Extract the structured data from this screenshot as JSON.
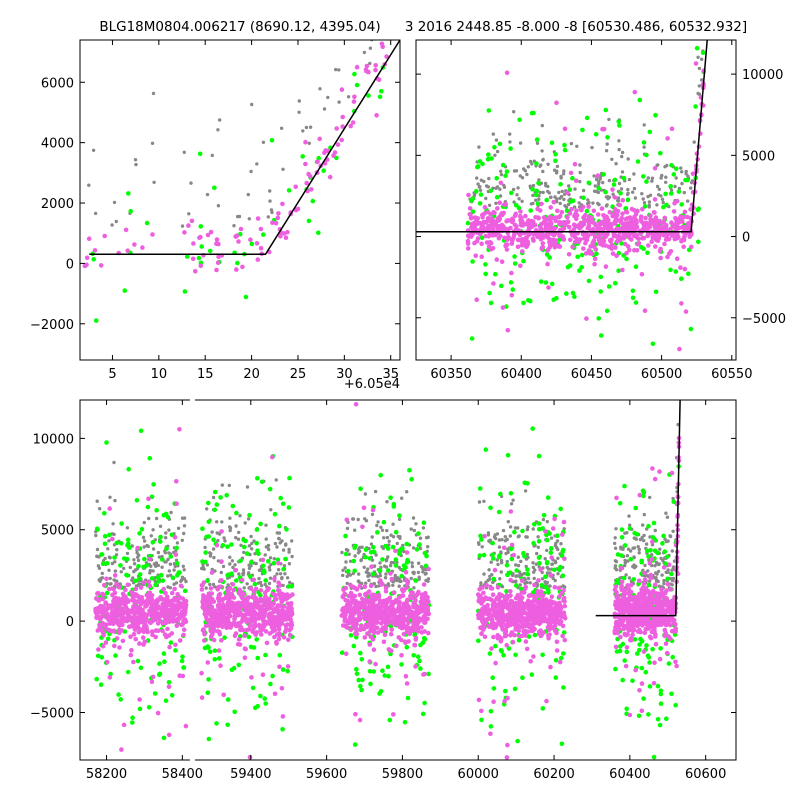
{
  "chart_data": [
    {
      "type": "scatter",
      "title": "BLG18M0804.006217 (8690.12, 4395.04)",
      "xlim": [
        1.5,
        36
      ],
      "ylim": [
        -3200,
        7400
      ],
      "x_offset_label": "+6.05e4",
      "xticks": [
        5,
        10,
        15,
        20,
        25,
        30,
        35
      ],
      "xtick_labels": [
        "5",
        "10",
        "15",
        "20",
        "25",
        "30",
        "35"
      ],
      "yticks": [
        -2000,
        0,
        2000,
        4000,
        6000
      ],
      "ytick_labels": [
        "−2000",
        "0",
        "2000",
        "4000",
        "6000"
      ],
      "colors": {
        "gray": "#888888",
        "green": "#00ff00",
        "magenta": "#ee5fe0",
        "model": "#000000"
      },
      "model": {
        "x": [
          2.5,
          21.5,
          36
        ],
        "y": [
          300,
          300,
          7400
        ]
      }
    },
    {
      "type": "scatter",
      "title": "3 2016 2448.85 -8.000 -8 [60530.486, 60532.932]",
      "xlim": [
        60325,
        60553
      ],
      "ylim": [
        -7600,
        12100
      ],
      "xticks": [
        60350,
        60400,
        60450,
        60500,
        60550
      ],
      "xtick_labels": [
        "60350",
        "60400",
        "60450",
        "60500",
        "60550"
      ],
      "yticks": [
        -5000,
        0,
        5000,
        10000
      ],
      "ytick_labels": [
        "−5000",
        "0",
        "5000",
        "10000"
      ],
      "colors": {
        "gray": "#888888",
        "green": "#00ff00",
        "magenta": "#ee5fe0",
        "model": "#000000"
      },
      "model": {
        "x": [
          60325,
          60521,
          60532.5
        ],
        "y": [
          300,
          300,
          12100
        ]
      }
    },
    {
      "type": "scatter",
      "xlim": [
        58130,
        60680
      ],
      "ylim": [
        -7600,
        12100
      ],
      "xticks": [
        58200,
        58400,
        59400,
        59600,
        59800,
        60000,
        60200,
        60400,
        60600
      ],
      "xtick_labels": [
        "58200",
        "58400",
        "59400",
        "59600",
        "59800",
        "60000",
        "60200",
        "60400",
        "60600"
      ],
      "yticks": [
        -5000,
        0,
        5000,
        10000
      ],
      "ytick_labels": [
        "−5000",
        "0",
        "5000",
        "10000"
      ],
      "axis_break": [
        58420,
        59250
      ],
      "seasons": [
        [
          58170,
          58410
        ],
        [
          59270,
          59510
        ],
        [
          59640,
          59870
        ],
        [
          60000,
          60230
        ],
        [
          60360,
          60530
        ]
      ],
      "colors": {
        "gray": "#888888",
        "green": "#00ff00",
        "magenta": "#ee5fe0",
        "model": "#000000"
      },
      "model": {
        "x": [
          60310,
          60521,
          60532.5
        ],
        "y": [
          300,
          300,
          12100
        ]
      }
    }
  ]
}
